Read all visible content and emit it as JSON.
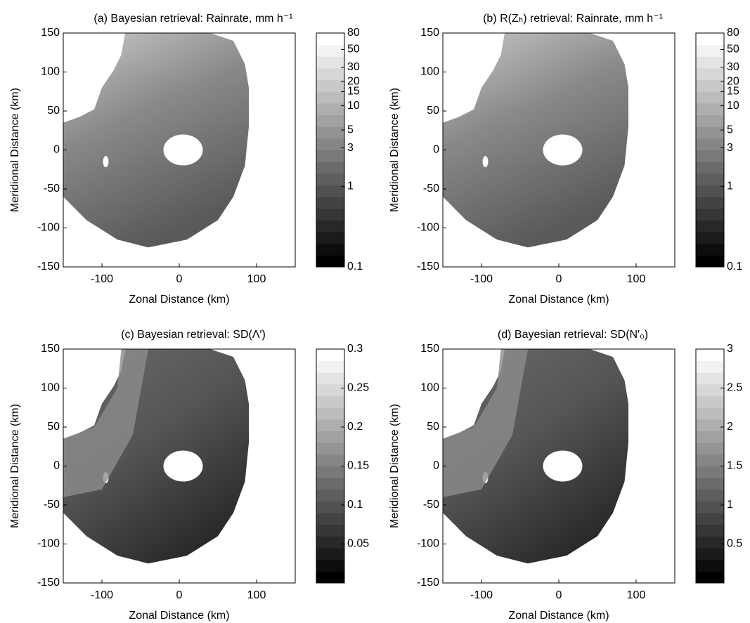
{
  "chart_data": [
    {
      "type": "heatmap",
      "title": "(a) Bayesian retrieval: Rainrate,  mm h⁻¹",
      "xlabel": "Zonal Distance (km)",
      "ylabel": "Meridional Distance (km)",
      "xlim": [
        -150,
        150
      ],
      "ylim": [
        -150,
        150
      ],
      "xticks": [
        -100,
        0,
        100
      ],
      "yticks": [
        -150,
        -100,
        -50,
        0,
        50,
        100,
        150
      ],
      "colorbar": {
        "log": true,
        "clim": [
          0.1,
          80
        ],
        "ticks": [
          0.1,
          1,
          3,
          5,
          10,
          15,
          20,
          30,
          50,
          80
        ]
      }
    },
    {
      "type": "heatmap",
      "title": "(b) R(Zₕ) retrieval: Rainrate,  mm h⁻¹",
      "xlabel": "Zonal Distance (km)",
      "ylabel": "Meridional Distance (km)",
      "xlim": [
        -150,
        150
      ],
      "ylim": [
        -150,
        150
      ],
      "xticks": [
        -100,
        0,
        100
      ],
      "yticks": [
        -150,
        -100,
        -50,
        0,
        50,
        100,
        150
      ],
      "colorbar": {
        "log": true,
        "clim": [
          0.1,
          80
        ],
        "ticks": [
          0.1,
          1,
          3,
          5,
          10,
          15,
          20,
          30,
          50,
          80
        ]
      }
    },
    {
      "type": "heatmap",
      "title": "(c) Bayesian retrieval:  SD(Λ′)",
      "xlabel": "Zonal Distance (km)",
      "ylabel": "Meridional Distance (km)",
      "xlim": [
        -150,
        150
      ],
      "ylim": [
        -150,
        150
      ],
      "xticks": [
        -100,
        0,
        100
      ],
      "yticks": [
        -150,
        -100,
        -50,
        0,
        50,
        100,
        150
      ],
      "colorbar": {
        "log": false,
        "clim": [
          0,
          0.3
        ],
        "ticks": [
          0.05,
          0.1,
          0.15,
          0.2,
          0.25,
          0.3
        ]
      }
    },
    {
      "type": "heatmap",
      "title": "(d) Bayesian retrieval:  SD(N′₀)",
      "xlabel": "Zonal Distance (km)",
      "ylabel": "Meridional Distance (km)",
      "xlim": [
        -150,
        150
      ],
      "ylim": [
        -150,
        150
      ],
      "xticks": [
        -100,
        0,
        100
      ],
      "yticks": [
        -150,
        -100,
        -50,
        0,
        50,
        100,
        150
      ],
      "colorbar": {
        "log": false,
        "clim": [
          0,
          3
        ],
        "ticks": [
          0.5,
          1,
          1.5,
          2,
          2.5,
          3
        ]
      }
    }
  ]
}
